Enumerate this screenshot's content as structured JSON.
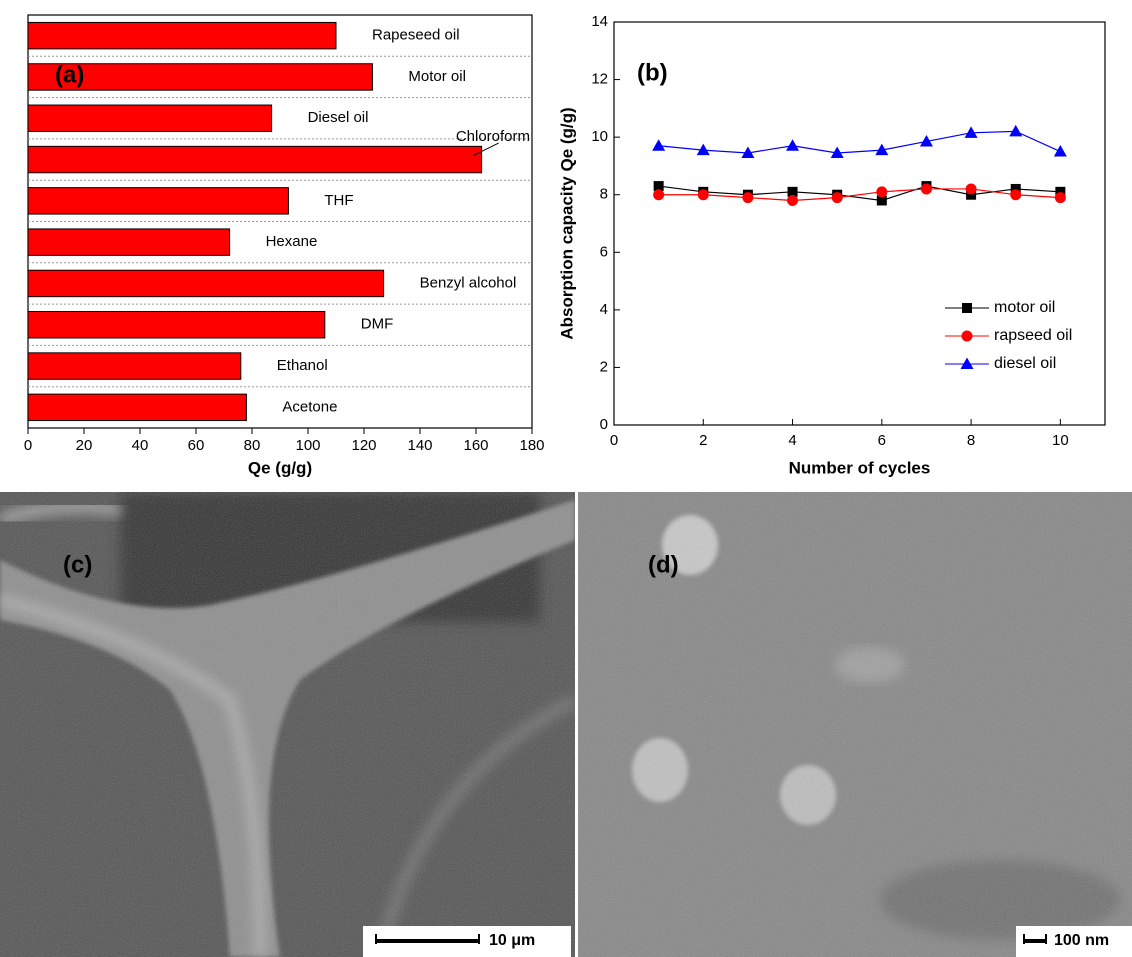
{
  "chart_data": [
    {
      "type": "barh",
      "label": "(a)",
      "x_label": "Qe (g/g)",
      "categories": [
        "Rapeseed oil",
        "Motor oil",
        "Diesel oil",
        "Chloroform",
        "THF",
        "Hexane",
        "Benzyl alcohol",
        "DMF",
        "Ethanol",
        "Acetone"
      ],
      "values": [
        110,
        123,
        87,
        162,
        93,
        72,
        127,
        106,
        76,
        78
      ],
      "color": "#ff0000",
      "xlim": [
        0,
        180
      ],
      "xticks": [
        0,
        20,
        40,
        60,
        80,
        100,
        120,
        140,
        160,
        180
      ],
      "grid": true
    },
    {
      "type": "line",
      "label": "(b)",
      "x_label": "Number of  cycles",
      "y_label": "Absorption capacity Qe (g/g)",
      "x": [
        1,
        2,
        3,
        4,
        5,
        6,
        7,
        8,
        9,
        10
      ],
      "series": [
        {
          "name": "motor oil",
          "color": "#000000",
          "marker": "square",
          "values": [
            8.3,
            8.1,
            8.0,
            8.1,
            8.0,
            7.8,
            8.3,
            8.0,
            8.2,
            8.1
          ]
        },
        {
          "name": "rapseed oil",
          "color": "#ff0000",
          "marker": "circle",
          "values": [
            8.0,
            8.0,
            7.9,
            7.8,
            7.9,
            8.1,
            8.2,
            8.2,
            8.0,
            7.9
          ]
        },
        {
          "name": "diesel oil",
          "color": "#0000ff",
          "marker": "triangle",
          "values": [
            9.7,
            9.55,
            9.45,
            9.7,
            9.45,
            9.55,
            9.85,
            10.15,
            10.2,
            9.5
          ]
        }
      ],
      "xlim": [
        0,
        11
      ],
      "xticks": [
        0,
        2,
        4,
        6,
        8,
        10
      ],
      "ylim": [
        0,
        14
      ],
      "yticks": [
        0,
        2,
        4,
        6,
        8,
        10,
        12,
        14
      ],
      "legend": "lower right"
    }
  ],
  "images": [
    {
      "label": "(c)",
      "scale_bar": "10 μm"
    },
    {
      "label": "(d)",
      "scale_bar": "100 nm"
    }
  ]
}
